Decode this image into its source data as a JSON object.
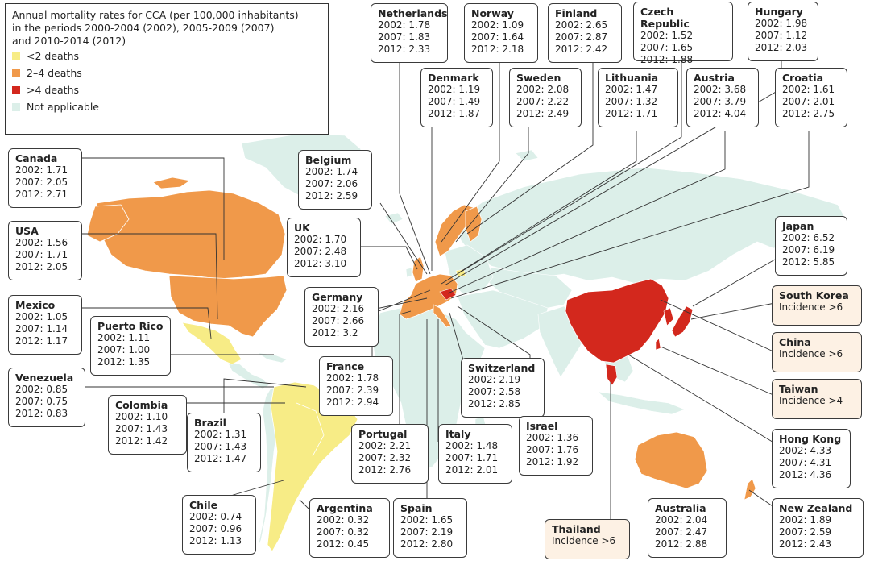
{
  "legend": {
    "title": "Annual mortality rates for CCA (per 100,000 inhabitants)\nin the periods 2000-2004 (2002), 2005-2009 (2007)\nand 2010-2014 (2012)",
    "items": [
      {
        "label": "<2 deaths",
        "color": "#f7ec86"
      },
      {
        "label": "2–4 deaths",
        "color": "#f0994a"
      },
      {
        "label": ">4 deaths",
        "color": "#d3281d"
      },
      {
        "label": "Not applicable",
        "color": "#dcefe9"
      }
    ]
  },
  "colors": {
    "other": "#dcefe9",
    "low": "#f7ec86",
    "mid": "#f0994a",
    "high": "#d3281d"
  },
  "countries": [
    {
      "id": "netherlands",
      "name": "Netherlands",
      "lines": [
        "2002: 1.78",
        "2007: 1.83",
        "2012: 2.33"
      ]
    },
    {
      "id": "norway",
      "name": "Norway",
      "lines": [
        "2002: 1.09",
        "2007: 1.64",
        "2012: 2.18"
      ]
    },
    {
      "id": "finland",
      "name": "Finland",
      "lines": [
        "2002: 2.65",
        "2007: 2.87",
        "2012: 2.42"
      ]
    },
    {
      "id": "czech-republic",
      "name": "Czech Republic",
      "lines": [
        "2002: 1.52",
        "2007: 1.65",
        "2012: 1.88"
      ]
    },
    {
      "id": "hungary",
      "name": "Hungary",
      "lines": [
        "2002: 1.98",
        "2007: 1.12",
        "2012: 2.03"
      ]
    },
    {
      "id": "denmark",
      "name": "Denmark",
      "lines": [
        "2002: 1.19",
        "2007: 1.49",
        "2012: 1.87"
      ]
    },
    {
      "id": "sweden",
      "name": "Sweden",
      "lines": [
        "2002: 2.08",
        "2007: 2.22",
        "2012: 2.49"
      ]
    },
    {
      "id": "lithuania",
      "name": "Lithuania",
      "lines": [
        "2002: 1.47",
        "2007: 1.32",
        "2012: 1.71"
      ]
    },
    {
      "id": "austria",
      "name": "Austria",
      "lines": [
        "2002: 3.68",
        "2007: 3.79",
        "2012: 4.04"
      ]
    },
    {
      "id": "croatia",
      "name": "Croatia",
      "lines": [
        "2002: 1.61",
        "2007: 2.01",
        "2012: 2.75"
      ]
    },
    {
      "id": "canada",
      "name": "Canada",
      "lines": [
        "2002: 1.71",
        "2007: 2.05",
        "2012: 2.71"
      ]
    },
    {
      "id": "belgium",
      "name": "Belgium",
      "lines": [
        "2002: 1.74",
        "2007: 2.06",
        "2012: 2.59"
      ]
    },
    {
      "id": "usa",
      "name": "USA",
      "lines": [
        "2002: 1.56",
        "2007: 1.71",
        "2012: 2.05"
      ]
    },
    {
      "id": "uk",
      "name": "UK",
      "lines": [
        "2002: 1.70",
        "2007: 2.48",
        "2012: 3.10"
      ]
    },
    {
      "id": "japan",
      "name": "Japan",
      "lines": [
        "2002: 6.52",
        "2007: 6.19",
        "2012: 5.85"
      ]
    },
    {
      "id": "mexico",
      "name": "Mexico",
      "lines": [
        "2002: 1.05",
        "2007: 1.14",
        "2012: 1.17"
      ]
    },
    {
      "id": "germany",
      "name": "Germany",
      "lines": [
        "2002: 2.16",
        "2007: 2.66",
        "2012: 3.2"
      ]
    },
    {
      "id": "south-korea",
      "name": "South Korea",
      "lines": [
        "Incidence >6"
      ]
    },
    {
      "id": "puerto-rico",
      "name": "Puerto Rico",
      "lines": [
        "2002: 1.11",
        "2007: 1.00",
        "2012: 1.35"
      ]
    },
    {
      "id": "china",
      "name": "China",
      "lines": [
        "Incidence >6"
      ]
    },
    {
      "id": "venezuela",
      "name": "Venezuela",
      "lines": [
        "2002: 0.85",
        "2007: 0.75",
        "2012: 0.83"
      ]
    },
    {
      "id": "france",
      "name": "France",
      "lines": [
        "2002: 1.78",
        "2007: 2.39",
        "2012: 2.94"
      ]
    },
    {
      "id": "switzerland",
      "name": "Switzerland",
      "lines": [
        "2002: 2.19",
        "2007: 2.58",
        "2012: 2.85"
      ]
    },
    {
      "id": "taiwan",
      "name": "Taiwan",
      "lines": [
        "Incidence >4"
      ]
    },
    {
      "id": "colombia",
      "name": "Colombia",
      "lines": [
        "2002: 1.10",
        "2007: 1.43",
        "2012: 1.42"
      ]
    },
    {
      "id": "brazil",
      "name": "Brazil",
      "lines": [
        "2002: 1.31",
        "2007: 1.43",
        "2012: 1.47"
      ]
    },
    {
      "id": "portugal",
      "name": "Portugal",
      "lines": [
        "2002: 2.21",
        "2007: 2.32",
        "2012: 2.76"
      ]
    },
    {
      "id": "italy",
      "name": "Italy",
      "lines": [
        "2002: 1.48",
        "2007: 1.71",
        "2012: 2.01"
      ]
    },
    {
      "id": "israel",
      "name": "Israel",
      "lines": [
        "2002: 1.36",
        "2007: 1.76",
        "2012: 1.92"
      ]
    },
    {
      "id": "hong-kong",
      "name": "Hong Kong",
      "lines": [
        "2002: 4.33",
        "2007: 4.31",
        "2012: 4.36"
      ]
    },
    {
      "id": "chile",
      "name": "Chile",
      "lines": [
        "2002: 0.74",
        "2007: 0.96",
        "2012: 1.13"
      ]
    },
    {
      "id": "argentina",
      "name": "Argentina",
      "lines": [
        "2002: 0.32",
        "2007: 0.32",
        "2012: 0.45"
      ]
    },
    {
      "id": "spain",
      "name": "Spain",
      "lines": [
        "2002: 1.65",
        "2007: 2.19",
        "2012: 2.80"
      ]
    },
    {
      "id": "thailand",
      "name": "Thailand",
      "lines": [
        "Incidence >6"
      ]
    },
    {
      "id": "australia",
      "name": "Australia",
      "lines": [
        "2002: 2.04",
        "2007: 2.47",
        "2012: 2.88"
      ]
    },
    {
      "id": "new-zealand",
      "name": "New Zealand",
      "lines": [
        "2002: 1.89",
        "2007: 2.59",
        "2012: 2.43"
      ]
    }
  ]
}
